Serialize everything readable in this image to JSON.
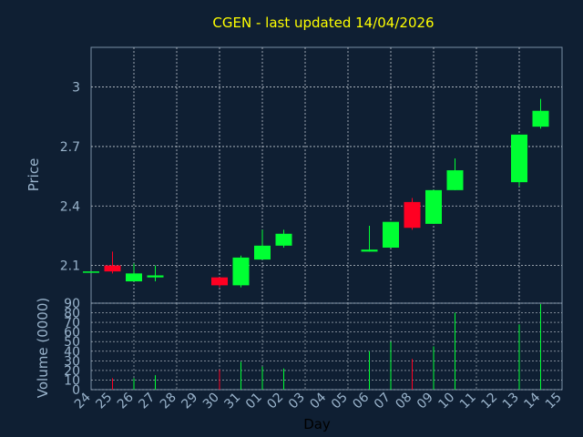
{
  "title": "CGEN - last updated 14/04/2026",
  "colors": {
    "background": "#0f1f33",
    "title": "#ffff00",
    "axis_text": "#9ab4cc",
    "frame": "#7a8fa6",
    "grid": "#c0c8d0",
    "up": "#00ff33",
    "down": "#ff0022"
  },
  "chart_data": [
    {
      "type": "candlestick",
      "ylabel": "Price",
      "ylim": [
        1.91,
        3.2
      ],
      "yticks": [
        "2.1",
        "2.4",
        "2.7",
        "3"
      ],
      "grid": true,
      "categories": [
        "24",
        "25",
        "26",
        "27",
        "28",
        "29",
        "30",
        "31",
        "01",
        "02",
        "03",
        "04",
        "05",
        "06",
        "07",
        "08",
        "09",
        "10",
        "11",
        "12",
        "13",
        "14",
        "15"
      ],
      "candles": [
        {
          "x": "24",
          "open": 2.07,
          "close": 2.07,
          "high": 2.07,
          "low": 2.07
        },
        {
          "x": "25",
          "open": 2.1,
          "close": 2.07,
          "high": 2.17,
          "low": 2.06
        },
        {
          "x": "26",
          "open": 2.02,
          "close": 2.06,
          "high": 2.11,
          "low": 2.02
        },
        {
          "x": "27",
          "open": 2.04,
          "close": 2.05,
          "high": 2.1,
          "low": 2.02
        },
        {
          "x": "30",
          "open": 2.04,
          "close": 2.0,
          "high": 2.04,
          "low": 1.99
        },
        {
          "x": "31",
          "open": 2.0,
          "close": 2.14,
          "high": 2.15,
          "low": 1.99
        },
        {
          "x": "01",
          "open": 2.13,
          "close": 2.2,
          "high": 2.28,
          "low": 2.13
        },
        {
          "x": "02",
          "open": 2.2,
          "close": 2.26,
          "high": 2.28,
          "low": 2.19
        },
        {
          "x": "06",
          "open": 2.17,
          "close": 2.18,
          "high": 2.3,
          "low": 2.17
        },
        {
          "x": "07",
          "open": 2.19,
          "close": 2.32,
          "high": 2.32,
          "low": 2.19
        },
        {
          "x": "08",
          "open": 2.42,
          "close": 2.29,
          "high": 2.44,
          "low": 2.28
        },
        {
          "x": "09",
          "open": 2.31,
          "close": 2.48,
          "high": 2.48,
          "low": 2.31
        },
        {
          "x": "10",
          "open": 2.48,
          "close": 2.58,
          "high": 2.64,
          "low": 2.48
        },
        {
          "x": "13",
          "open": 2.52,
          "close": 2.76,
          "high": 2.76,
          "low": 2.5
        },
        {
          "x": "14",
          "open": 2.8,
          "close": 2.88,
          "high": 2.94,
          "low": 2.79
        }
      ]
    },
    {
      "type": "bar",
      "xlabel": "Day",
      "ylabel": "Volume (0000)",
      "ylim": [
        0,
        90
      ],
      "yticks": [
        "0",
        "10",
        "20",
        "30",
        "40",
        "50",
        "60",
        "70",
        "80",
        "90"
      ],
      "grid": true,
      "categories": [
        "24",
        "25",
        "26",
        "27",
        "28",
        "29",
        "30",
        "31",
        "01",
        "02",
        "03",
        "04",
        "05",
        "06",
        "07",
        "08",
        "09",
        "10",
        "11",
        "12",
        "13",
        "14",
        "15"
      ],
      "bars": [
        {
          "x": "25",
          "value": 12,
          "dir": "down"
        },
        {
          "x": "26",
          "value": 12,
          "dir": "up"
        },
        {
          "x": "27",
          "value": 15,
          "dir": "up"
        },
        {
          "x": "30",
          "value": 21,
          "dir": "down"
        },
        {
          "x": "31",
          "value": 29,
          "dir": "up"
        },
        {
          "x": "01",
          "value": 24,
          "dir": "up"
        },
        {
          "x": "02",
          "value": 22,
          "dir": "up"
        },
        {
          "x": "06",
          "value": 40,
          "dir": "up"
        },
        {
          "x": "07",
          "value": 50,
          "dir": "up"
        },
        {
          "x": "08",
          "value": 32,
          "dir": "down"
        },
        {
          "x": "09",
          "value": 45,
          "dir": "up"
        },
        {
          "x": "10",
          "value": 80,
          "dir": "up"
        },
        {
          "x": "13",
          "value": 68,
          "dir": "up"
        },
        {
          "x": "14",
          "value": 89,
          "dir": "up"
        }
      ]
    }
  ]
}
